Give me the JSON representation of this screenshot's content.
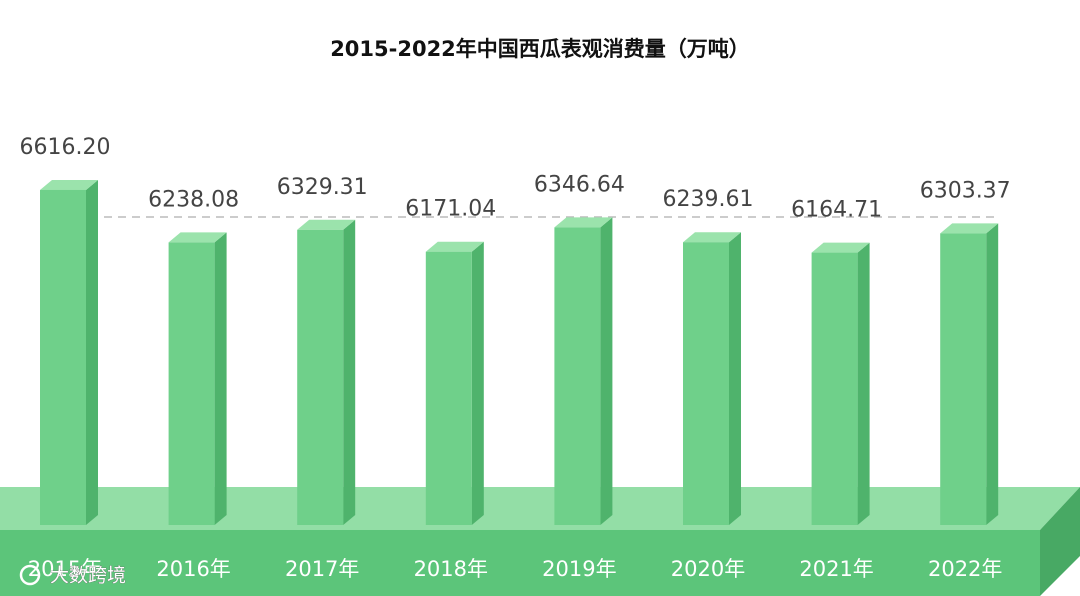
{
  "chart_data": {
    "type": "bar3d",
    "title": "2015-2022年中国西瓜表观消费量（万吨）",
    "categories": [
      "2015年",
      "2016年",
      "2017年",
      "2018年",
      "2019年",
      "2020年",
      "2021年",
      "2022年"
    ],
    "values": [
      6616.2,
      6238.08,
      6329.31,
      6171.04,
      6346.64,
      6239.61,
      6164.71,
      6303.37
    ],
    "value_labels": [
      "6616.20",
      "6238.08",
      "6329.31",
      "6171.04",
      "6346.64",
      "6239.61",
      "6164.71",
      "6303.37"
    ],
    "color": "#6fd08a",
    "ylim": [
      4200,
      6800
    ],
    "watermark": "大数跨境"
  }
}
